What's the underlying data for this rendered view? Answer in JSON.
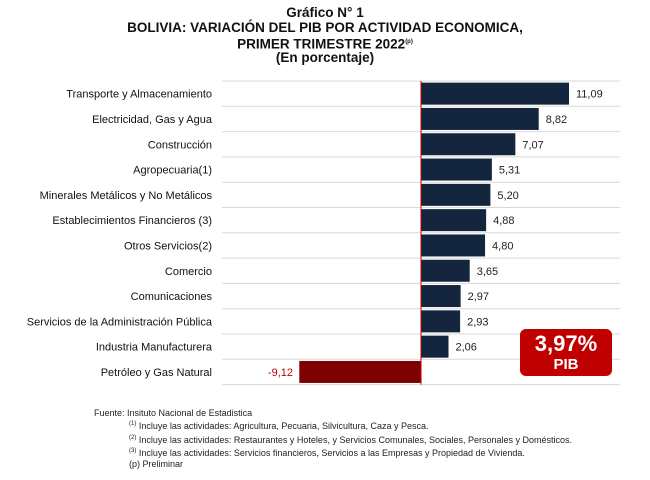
{
  "chart_data": {
    "type": "bar",
    "orientation": "horizontal",
    "title": "Gráfico N° 1",
    "subtitle_lines": [
      "BOLIVIA: VARIACIÓN DEL PIB POR ACTIVIDAD ECONOMICA,",
      "PRIMER TRIMESTRE 2022"
    ],
    "subtitle_sup": "(p)",
    "unit_line": "(En porcentaje)",
    "categories": [
      "Transporte y Almacenamiento",
      "Electricidad, Gas y Agua",
      "Construcción",
      "Agropecuaria(1)",
      "Minerales Metálicos y No Metálicos",
      "Establecimientos Financieros (3)",
      "Otros Servicios(2)",
      "Comercio",
      "Comunicaciones",
      "Servicios de la Administración Pública",
      "Industria Manufacturera",
      "Petróleo y Gas Natural"
    ],
    "values": [
      11.09,
      8.82,
      7.07,
      5.31,
      5.2,
      4.88,
      4.8,
      3.65,
      2.97,
      2.93,
      2.06,
      -9.12
    ],
    "data_labels": [
      "11,09",
      "8,82",
      "7,07",
      "5,31",
      "5,20",
      "4,88",
      "4,80",
      "3,65",
      "2,97",
      "2,93",
      "2,06",
      "-9,12"
    ],
    "xlim": [
      -9.12,
      11.09
    ],
    "grid": true,
    "colors": {
      "positive": "#13263e",
      "negative": "#7f0000",
      "negative_label": "#c00000",
      "grid": "#d9d9d9"
    },
    "annotation": {
      "value": "3,97%",
      "label": "PIB",
      "color": "#c00000"
    }
  },
  "notes": {
    "source": "Fuente: Insituto Nacional de Estadistica",
    "n1_mark": "(1)",
    "n1": " Incluye las actividades: Agricultura, Pecuaria, Silvicultura, Caza y Pesca.",
    "n2_mark": "(2)",
    "n2": " Incluye las actividades: Restaurantes y Hoteles, y Servicios Comunales, Sociales, Personales y Domésticos.",
    "n3_mark": "(3)",
    "n3": " Incluye las actividades: Servicios financieros, Servicios a las Empresas y Propiedad de Vivienda.",
    "p": "(p) Preliminar"
  }
}
